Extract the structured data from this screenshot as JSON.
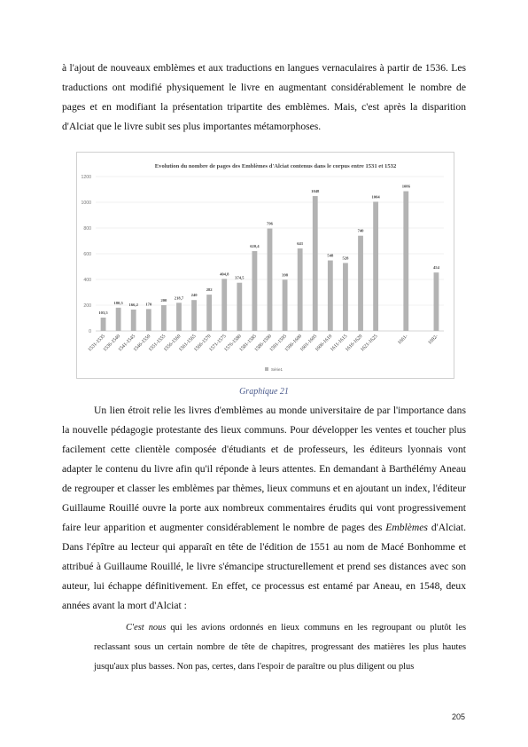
{
  "intro": [
    "à l'ajout de nouveaux emblèmes et aux traductions en langues vernaculaires à partir de 1536. Les traductions ont modifié physiquement le livre en augmentant considérablement le nombre de pages et en modifiant la présentation tripartite des emblèmes. Mais, c'est après la disparition d'Alciat que le livre subit ses plus importantes métamorphoses."
  ],
  "caption": "Graphique 21",
  "body_before_italic": "Un lien étroit relie les livres d'emblèmes au monde universitaire de par l'importance dans la nouvelle pédagogie protestante des lieux communs. Pour développer les ventes et toucher plus facilement cette clientèle composée d'étudiants et de professeurs, les éditeurs lyonnais vont adapter le contenu du livre afin qu'il réponde à leurs attentes. En demandant à Barthélémy Aneau de regrouper et classer les emblèmes par thèmes, lieux communs et en ajoutant un index, l'éditeur Guillaume Rouillé ouvre la porte aux nombreux commentaires érudits qui vont progressivement faire leur apparition et augmenter considérablement le nombre de pages des ",
  "body_italic": "Emblèmes",
  "body_after_italic": " d'Alciat. Dans l'épître au lecteur qui apparaît en tête de l'édition de 1551 au nom de Macé Bonhomme et attribué à Guillaume Rouillé, le livre s'émancipe structurellement et prend ses distances avec son auteur, lui échappe définitivement. En effet, ce processus est entamé par Aneau, en 1548, deux années avant la mort d'Alciat :",
  "quote_italic": "C'est nous",
  "quote_rest": " qui les avions ordonnés en lieux communs en les regroupant ou plutôt les reclassant sous un certain nombre de tête de chapitres, progressant des matières les plus hautes jusqu'aux plus basses. Non pas, certes, dans l'espoir de paraître ou plus diligent ou plus",
  "page_number": "205",
  "chart_data": {
    "type": "bar",
    "title": "Evolution du nombre de pages des Emblèmes d'Alciat contenus dans le corpus entre 1531 et 1532",
    "categories": [
      "1531-1535",
      "1536-1540",
      "1541-1545",
      "1546-1550",
      "1551-1555",
      "1556-1560",
      "1561-1565",
      "1566-1570",
      "1571-1575",
      "1576-1580",
      "1581-1585",
      "1586-1590",
      "1591-1595",
      "1596-1600",
      "1601-1605",
      "1606-1610",
      "1611-1615",
      "1616-1620",
      "1621-1625",
      "",
      "1661-",
      "",
      "1692-"
    ],
    "series": [
      {
        "name": "Série1",
        "values": [
          103.5,
          180.5,
          166.2,
          170,
          200,
          218.7,
          240,
          282,
          404.8,
          374.5,
          620.4,
          796,
          398,
          641,
          1048,
          548,
          528,
          740,
          1004,
          null,
          1086,
          null,
          454
        ],
        "labels": [
          "103,5",
          "180,5",
          "166,2",
          "170",
          "200",
          "218,7",
          "240",
          "282",
          "404,8",
          "374,5",
          "620,4",
          "796",
          "398",
          "641",
          "1048",
          "548",
          "528",
          "740",
          "1004",
          "",
          "1086",
          "",
          "454"
        ]
      }
    ],
    "ylim": [
      0,
      1200
    ],
    "yticks": [
      0,
      200,
      400,
      600,
      800,
      1000,
      1200
    ],
    "grid": true,
    "legend": "bottom",
    "bar_color": "#b3b3b3"
  }
}
